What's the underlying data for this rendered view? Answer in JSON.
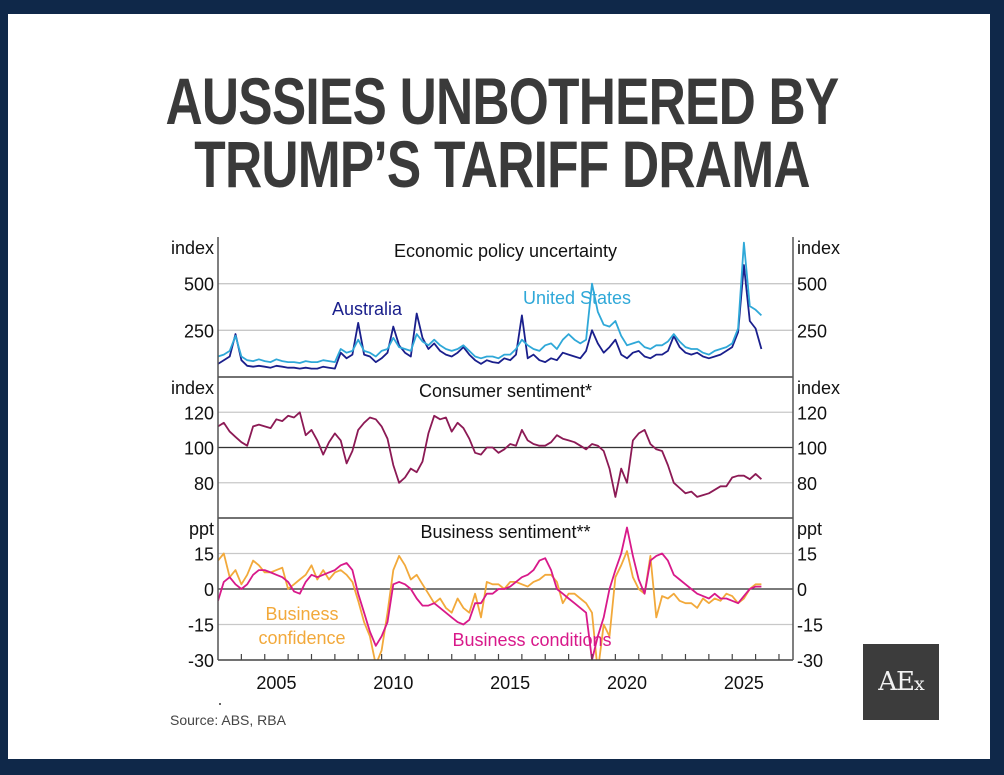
{
  "headline": {
    "line1": "AUSSIES UNBOTHERED BY",
    "line2": "TRUMP’S TARIFF DRAMA"
  },
  "source": "Source: ABS, RBA",
  "logo": {
    "main": "AE",
    "suffix": "x"
  },
  "colors": {
    "frame": "#0f2849",
    "headline": "#3a3a3a",
    "australia": "#1a1f8c",
    "united_states": "#2fa8d8",
    "consumer": "#8c1a55",
    "confidence": "#f2a93b",
    "conditions": "#d8198a"
  },
  "chart_data": [
    {
      "type": "line",
      "title": "Economic policy uncertainty",
      "ylabel_left": "index",
      "ylabel_right": "index",
      "yticks": [
        250,
        500
      ],
      "ylim": [
        0,
        750
      ],
      "xlim": [
        2002.0,
        2026.6
      ],
      "series": [
        {
          "name": "Australia",
          "label": "Australia",
          "x_start": 2002.0,
          "step": 0.25,
          "values": [
            70,
            90,
            110,
            230,
            90,
            60,
            55,
            60,
            55,
            50,
            60,
            55,
            50,
            50,
            45,
            50,
            45,
            45,
            55,
            50,
            45,
            130,
            100,
            120,
            290,
            120,
            110,
            80,
            100,
            130,
            270,
            170,
            130,
            110,
            340,
            210,
            150,
            180,
            140,
            120,
            110,
            130,
            160,
            120,
            90,
            70,
            90,
            80,
            75,
            100,
            90,
            120,
            330,
            100,
            120,
            90,
            80,
            100,
            90,
            130,
            120,
            110,
            100,
            140,
            250,
            180,
            130,
            160,
            200,
            120,
            100,
            130,
            140,
            110,
            100,
            120,
            120,
            140,
            220,
            160,
            130,
            120,
            130,
            110,
            100,
            110,
            120,
            140,
            160,
            240,
            600,
            300,
            260,
            150
          ]
        },
        {
          "name": "United States",
          "label": "United States",
          "x_start": 2002.0,
          "step": 0.25,
          "values": [
            110,
            120,
            140,
            220,
            110,
            90,
            85,
            95,
            85,
            80,
            95,
            85,
            80,
            80,
            75,
            85,
            80,
            80,
            90,
            85,
            80,
            150,
            130,
            140,
            200,
            140,
            130,
            110,
            140,
            150,
            210,
            160,
            150,
            140,
            230,
            190,
            170,
            200,
            170,
            150,
            140,
            150,
            170,
            140,
            110,
            100,
            110,
            110,
            100,
            120,
            120,
            150,
            200,
            170,
            150,
            140,
            170,
            180,
            150,
            200,
            230,
            200,
            180,
            200,
            500,
            350,
            280,
            270,
            300,
            220,
            170,
            180,
            190,
            160,
            150,
            170,
            170,
            190,
            230,
            190,
            160,
            150,
            150,
            130,
            120,
            140,
            150,
            160,
            180,
            260,
            720,
            380,
            360,
            330
          ]
        }
      ]
    },
    {
      "type": "line",
      "title": "Consumer sentiment*",
      "ylabel_left": "index",
      "ylabel_right": "index",
      "yticks": [
        80,
        100,
        120
      ],
      "reference_line": 100,
      "ylim": [
        60,
        140
      ],
      "xlim": [
        2002.0,
        2026.6
      ],
      "series": [
        {
          "name": "Consumer sentiment",
          "x_start": 2002.0,
          "step": 0.25,
          "values": [
            112,
            114,
            109,
            106,
            103,
            101,
            112,
            113,
            112,
            111,
            116,
            115,
            118,
            117,
            120,
            107,
            110,
            104,
            96,
            103,
            108,
            104,
            91,
            98,
            110,
            114,
            117,
            116,
            112,
            105,
            90,
            80,
            83,
            88,
            86,
            92,
            108,
            118,
            116,
            117,
            109,
            114,
            111,
            105,
            97,
            96,
            100,
            100,
            97,
            99,
            102,
            101,
            110,
            104,
            102,
            101,
            101,
            103,
            107,
            105,
            104,
            103,
            101,
            99,
            102,
            101,
            98,
            88,
            72,
            88,
            80,
            104,
            108,
            110,
            102,
            99,
            98,
            90,
            80,
            77,
            74,
            75,
            72,
            73,
            74,
            76,
            78,
            78,
            83,
            84,
            84,
            82,
            85,
            82
          ]
        }
      ]
    },
    {
      "type": "line",
      "title": "Business sentiment**",
      "ylabel_left": "ppt",
      "ylabel_right": "ppt",
      "yticks": [
        -30,
        -15,
        0,
        15
      ],
      "reference_line": 0,
      "ylim": [
        -30,
        30
      ],
      "xlim": [
        2002.0,
        2026.6
      ],
      "x_ticks_labeled": [
        2005,
        2010,
        2015,
        2020,
        2025
      ],
      "series": [
        {
          "name": "Business confidence",
          "label": "Business confidence",
          "x_start": 2002.0,
          "step": 0.25,
          "values": [
            12,
            15,
            5,
            8,
            2,
            6,
            12,
            10,
            7,
            7,
            8,
            9,
            0,
            2,
            4,
            6,
            10,
            4,
            8,
            4,
            7,
            8,
            6,
            3,
            -5,
            -14,
            -20,
            -32,
            -26,
            -10,
            8,
            14,
            10,
            4,
            6,
            2,
            -2,
            -6,
            -4,
            -8,
            -10,
            -4,
            -8,
            -10,
            -2,
            -12,
            3,
            2,
            2,
            0,
            3,
            3,
            2,
            1,
            3,
            4,
            6,
            6,
            3,
            -6,
            -2,
            -2,
            -4,
            -6,
            -10,
            -35,
            -15,
            -20,
            5,
            10,
            16,
            5,
            0,
            -2,
            14,
            -12,
            -3,
            -4,
            -2,
            -5,
            -6,
            -6,
            -8,
            -4,
            -6,
            -4,
            -5,
            -2,
            -3,
            -6,
            -4,
            0,
            2,
            2
          ]
        },
        {
          "name": "Business conditions",
          "label": "Business conditions",
          "x_start": 2002.0,
          "step": 0.25,
          "values": [
            -5,
            3,
            5,
            2,
            0,
            2,
            6,
            8,
            8,
            7,
            6,
            5,
            3,
            -1,
            -2,
            3,
            6,
            5,
            6,
            7,
            8,
            10,
            11,
            8,
            -2,
            -10,
            -18,
            -24,
            -20,
            -14,
            2,
            3,
            2,
            0,
            -4,
            -7,
            -7,
            -6,
            -8,
            -10,
            -12,
            -14,
            -15,
            -13,
            -6,
            -6,
            -2,
            -2,
            0,
            0,
            1,
            3,
            5,
            6,
            8,
            12,
            13,
            8,
            0,
            -2,
            -4,
            -6,
            -8,
            -10,
            -30,
            -20,
            -12,
            0,
            8,
            15,
            26,
            14,
            4,
            -2,
            12,
            14,
            15,
            12,
            6,
            4,
            2,
            0,
            -2,
            -3,
            -4,
            -2,
            -4,
            -4,
            -5,
            -6,
            -3,
            0,
            1,
            1
          ]
        }
      ]
    }
  ],
  "x_axis": {
    "tick_labels": [
      "2005",
      "2010",
      "2015",
      "2020",
      "2025"
    ]
  }
}
